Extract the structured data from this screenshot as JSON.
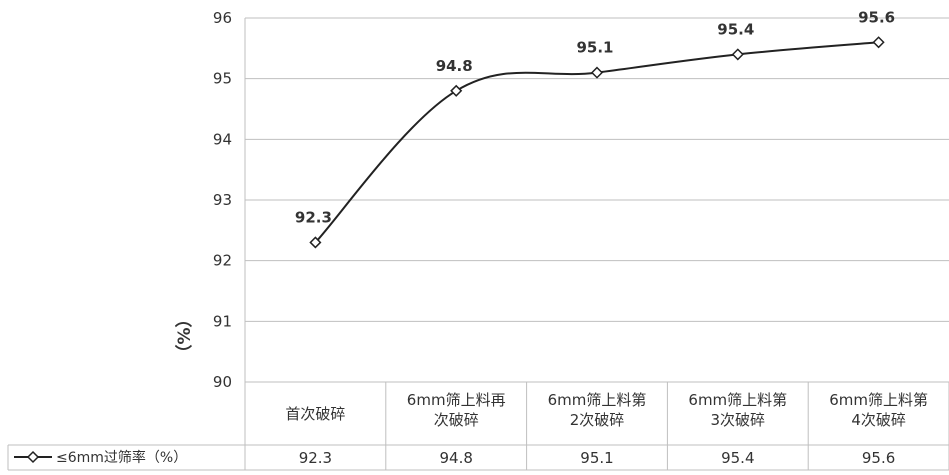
{
  "chart_data": {
    "type": "line",
    "categories": [
      [
        "首次破碎"
      ],
      [
        "6mm筛上料再",
        "次破碎"
      ],
      [
        "6mm筛上料第",
        "2次破碎"
      ],
      [
        "6mm筛上料第",
        "3次破碎"
      ],
      [
        "6mm筛上料第",
        "4次破碎"
      ]
    ],
    "series": [
      {
        "name": "≤6mm过筛率（%）",
        "values": [
          92.3,
          94.8,
          95.1,
          95.4,
          95.6
        ]
      }
    ],
    "table_values": [
      "92.3",
      "94.8",
      "95.1",
      "95.4",
      "95.6"
    ],
    "data_labels": [
      "92.3",
      "94.8",
      "95.1",
      "95.4",
      "95.6"
    ],
    "ylabel": "（%）",
    "ylim": [
      90,
      96
    ],
    "yticks": [
      90,
      91,
      92,
      93,
      94,
      95,
      96
    ],
    "grid": true,
    "marker": "diamond",
    "smooth": true,
    "legend": "data-table",
    "line_color": "#222222",
    "grid_color": "#bfbfbf"
  }
}
